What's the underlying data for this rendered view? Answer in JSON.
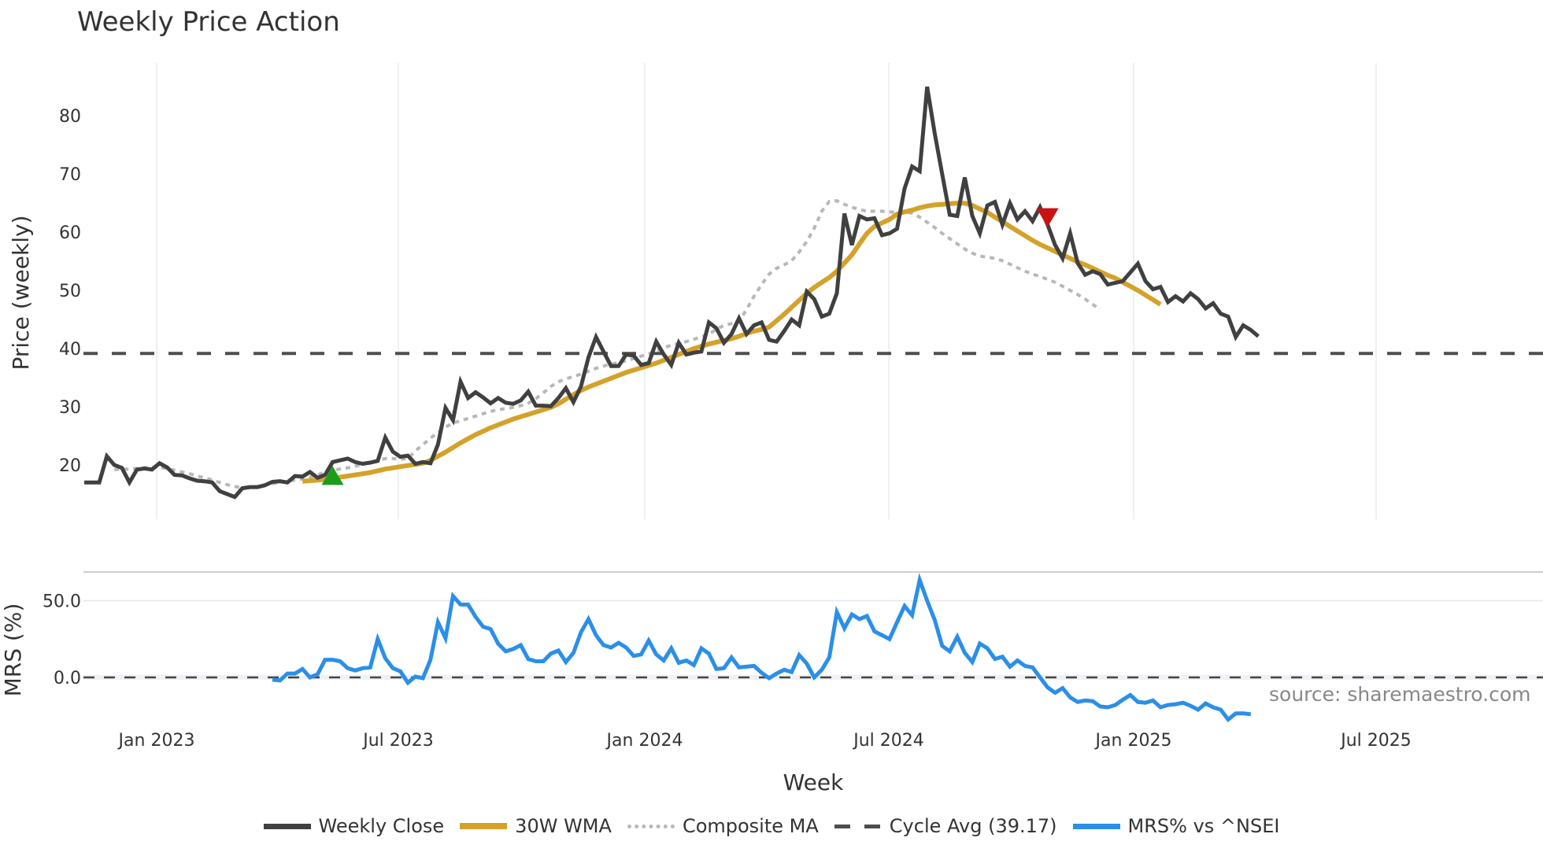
{
  "title": "Weekly Price Action",
  "source_label": "source: sharemaestro.com",
  "colors": {
    "weekly_close": "#404040",
    "wma": "#D4A22A",
    "composite": "#B8B8B8",
    "cycle_avg": "#4D4D4D",
    "mrs": "#2B8FE8",
    "buy_marker": "#1A9E1A",
    "sell_marker": "#CC1111",
    "grid": "#EBEBEB"
  },
  "legend": [
    {
      "key": "weekly_close",
      "label": "Weekly Close",
      "style": "solid"
    },
    {
      "key": "wma",
      "label": "30W WMA",
      "style": "solid"
    },
    {
      "key": "composite",
      "label": "Composite MA",
      "style": "dotted"
    },
    {
      "key": "cycle_avg",
      "label": "Cycle Avg (39.17)",
      "style": "dashed"
    },
    {
      "key": "mrs",
      "label": "MRS% vs ^NSEI",
      "style": "solid"
    }
  ],
  "chart_data": [
    {
      "type": "line",
      "title": "Weekly Price Action",
      "xlabel": "Week",
      "ylabel": "Price (weekly)",
      "x_ticks": [
        "Jan 2023",
        "Jul 2023",
        "Jan 2024",
        "Jul 2024",
        "Jan 2025",
        "Jul 2025"
      ],
      "y_ticks": [
        20,
        30,
        40,
        50,
        60,
        70,
        80
      ],
      "ylim": [
        10.5,
        88
      ],
      "x_range_weeks": [
        0,
        155
      ],
      "grid": "vertical",
      "cycle_avg": 39.17,
      "markers": [
        {
          "type": "buy",
          "shape": "triangle-up",
          "week": 33,
          "value": 18.2
        },
        {
          "type": "sell",
          "shape": "triangle-down",
          "week": 128,
          "value": 62.5
        }
      ],
      "series": [
        {
          "name": "Weekly Close",
          "start_week": 0,
          "values": [
            17,
            17,
            17,
            21.5,
            20,
            19.5,
            17,
            19.2,
            19.4,
            19.2,
            20.3,
            19.6,
            18.3,
            18.2,
            17.7,
            17.3,
            17.2,
            17,
            15.5,
            15,
            14.5,
            16,
            16.2,
            16.2,
            16.5,
            17.1,
            17.2,
            17,
            18.1,
            18,
            18.8,
            17.8,
            18.3,
            20.5,
            20.8,
            21.1,
            20.5,
            20.2,
            20.4,
            20.7,
            24.7,
            22.3,
            21.4,
            21.6,
            20.2,
            20.5,
            20.3,
            23.5,
            29.8,
            27.7,
            34.3,
            31.5,
            32.5,
            31.6,
            30.6,
            31.5,
            30.7,
            30.5,
            31.1,
            32.6,
            30.2,
            30.2,
            30.1,
            31.5,
            33.2,
            30.8,
            33.5,
            38.5,
            42,
            39.5,
            37,
            37,
            39,
            38.8,
            37.2,
            37.5,
            41.2,
            39,
            37.2,
            41,
            39,
            39.3,
            39.5,
            44.5,
            43.5,
            41,
            42.5,
            45.2,
            42.5,
            44,
            44.5,
            41.5,
            41.2,
            43,
            45,
            44,
            49.8,
            48.5,
            45.5,
            46,
            49.5,
            63.2,
            57.8,
            62.8,
            62.2,
            62.4,
            59.5,
            59.8,
            60.6,
            67.5,
            71.3,
            70.5,
            85,
            77,
            70,
            63,
            62.8,
            69.4,
            62.8,
            59.8,
            64.6,
            65.2,
            61.3,
            65,
            62.2,
            63.6,
            61.9,
            64.3,
            61.3,
            57.8,
            55.5,
            59.8,
            54.7,
            52.7,
            53.3,
            52.8,
            51,
            51.3,
            51.6,
            53.1,
            54.6,
            51.6,
            50.2,
            50.6,
            48,
            49,
            48.1,
            49.5,
            48.5,
            46.9,
            47.8,
            46,
            45.5,
            42,
            44,
            43.2,
            42.1
          ]
        },
        {
          "name": "30W WMA",
          "start_week": 29,
          "values": [
            17.2,
            17.3,
            17.4,
            17.5,
            17.7,
            17.9,
            18.1,
            18.3,
            18.5,
            18.7,
            19.0,
            19.3,
            19.5,
            19.7,
            19.9,
            20.1,
            20.3,
            20.8,
            21.5,
            22.2,
            23.0,
            23.8,
            24.5,
            25.2,
            25.8,
            26.4,
            26.9,
            27.4,
            27.9,
            28.3,
            28.7,
            29.1,
            29.5,
            29.9,
            30.5,
            31.3,
            32.1,
            32.8,
            33.4,
            33.9,
            34.4,
            34.9,
            35.4,
            35.9,
            36.3,
            36.7,
            37.1,
            37.5,
            38.0,
            38.5,
            39.0,
            39.5,
            40.0,
            40.4,
            40.8,
            41.1,
            41.4,
            41.7,
            42.1,
            42.6,
            43.0,
            43.3,
            43.7,
            44.8,
            45.9,
            47.1,
            48.3,
            49.5,
            50.5,
            51.4,
            52.2,
            53.3,
            54.7,
            56.1,
            58.0,
            59.8,
            61.0,
            61.6,
            62.2,
            63.1,
            63.5,
            63.8,
            64.2,
            64.5,
            64.7,
            64.8,
            64.9,
            65,
            65,
            64.6,
            64.0,
            63.4,
            62.6,
            61.8,
            61.0,
            60.2,
            59.4,
            58.6,
            57.9,
            57.3,
            56.7,
            56.1,
            55.5,
            54.9,
            54.4,
            53.8,
            53.2,
            52.6,
            52.1,
            51.4,
            50.7,
            50.0,
            49.2,
            48.4,
            47.6
          ]
        },
        {
          "name": "Composite MA",
          "start_week": 4,
          "values": [
            19.2,
            19.3,
            19.3,
            19.4,
            19.5,
            19.6,
            19.6,
            19.4,
            19.1,
            18.8,
            18.5,
            18.1,
            17.8,
            17.4,
            17.0,
            16.6,
            16.3,
            16.1,
            16.1,
            16.3,
            16.6,
            16.8,
            17.0,
            17.2,
            17.4,
            17.6,
            17.9,
            18.3,
            18.8,
            19.1,
            19.3,
            19.5,
            19.8,
            20.1,
            20.5,
            20.8,
            21.1,
            21.1,
            21.0,
            21.1,
            22.4,
            23.5,
            24.6,
            25.6,
            26.5,
            27.2,
            27.6,
            28.0,
            28.4,
            28.8,
            29.2,
            29.5,
            29.7,
            29.9,
            30.2,
            30.6,
            31.4,
            32.4,
            33.5,
            34.3,
            34.8,
            35.2,
            35.6,
            36.1,
            36.6,
            37.0,
            37.3,
            37.6,
            37.9,
            38.3,
            38.7,
            39.1,
            39.6,
            40.1,
            40.6,
            40.9,
            41.2,
            41.6,
            42.0,
            42.5,
            43.3,
            44.0,
            44.3,
            44.7,
            46.7,
            49.0,
            51.0,
            52.8,
            53.8,
            54.4,
            55.1,
            56.6,
            58.4,
            60.7,
            63.6,
            65.3,
            65.4,
            64.8,
            64.3,
            63.9,
            63.6,
            63.6,
            63.6,
            63.5,
            63.4,
            63.4,
            63.3,
            62.6,
            61.7,
            60.8,
            59.8,
            58.9,
            58.0,
            57.1,
            56.4,
            55.9,
            55.7,
            55.5,
            55.1,
            54.5,
            53.9,
            53.3,
            52.8,
            52.4,
            51.9,
            51.4,
            50.7,
            50.0,
            49.3,
            48.5,
            47.6,
            46.7
          ]
        },
        {
          "name": "Cycle Avg (39.17)",
          "constant": 39.17
        }
      ]
    },
    {
      "type": "line",
      "ylabel": "MRS (%)",
      "y_ticks": [
        0.0,
        50.0
      ],
      "ylim": [
        -30,
        68
      ],
      "zero_line": "dashed",
      "series": [
        {
          "name": "MRS% vs ^NSEI",
          "start_week": 25,
          "values": [
            -1.5,
            -2,
            2.5,
            2.5,
            5.5,
            0,
            2,
            11.5,
            11.5,
            10.5,
            6,
            4.5,
            6,
            6.5,
            25,
            12.5,
            6,
            4,
            -3.5,
            0.5,
            -0.5,
            11.5,
            36,
            25.5,
            53,
            47.5,
            47.5,
            39.5,
            33,
            31.5,
            22,
            17,
            18.5,
            21,
            12,
            10.5,
            10.5,
            15.5,
            17.5,
            10,
            16,
            29.5,
            38,
            27.5,
            21,
            19.5,
            22.5,
            19.5,
            14,
            15,
            24,
            15,
            11,
            19,
            9.5,
            11,
            8,
            19,
            15.5,
            5.5,
            6,
            13,
            6.5,
            7,
            7.5,
            3,
            -0.5,
            2.5,
            5,
            3.5,
            14.5,
            9,
            0,
            5,
            13,
            42.5,
            32,
            41,
            38,
            40,
            30,
            27.5,
            25,
            36,
            46.5,
            40.5,
            63.5,
            50,
            37.5,
            20.5,
            17,
            26.5,
            16,
            10,
            22,
            19,
            12,
            13.5,
            7,
            11,
            7.5,
            6.5,
            0,
            -6.5,
            -10,
            -7,
            -13,
            -16,
            -15,
            -15.5,
            -19,
            -19.5,
            -18,
            -14.5,
            -11.5,
            -16,
            -16.5,
            -15,
            -19.5,
            -18,
            -17.5,
            -16.5,
            -18.5,
            -21,
            -17,
            -19.5,
            -21,
            -27.5,
            -23.5,
            -23.5,
            -24
          ]
        }
      ]
    }
  ]
}
